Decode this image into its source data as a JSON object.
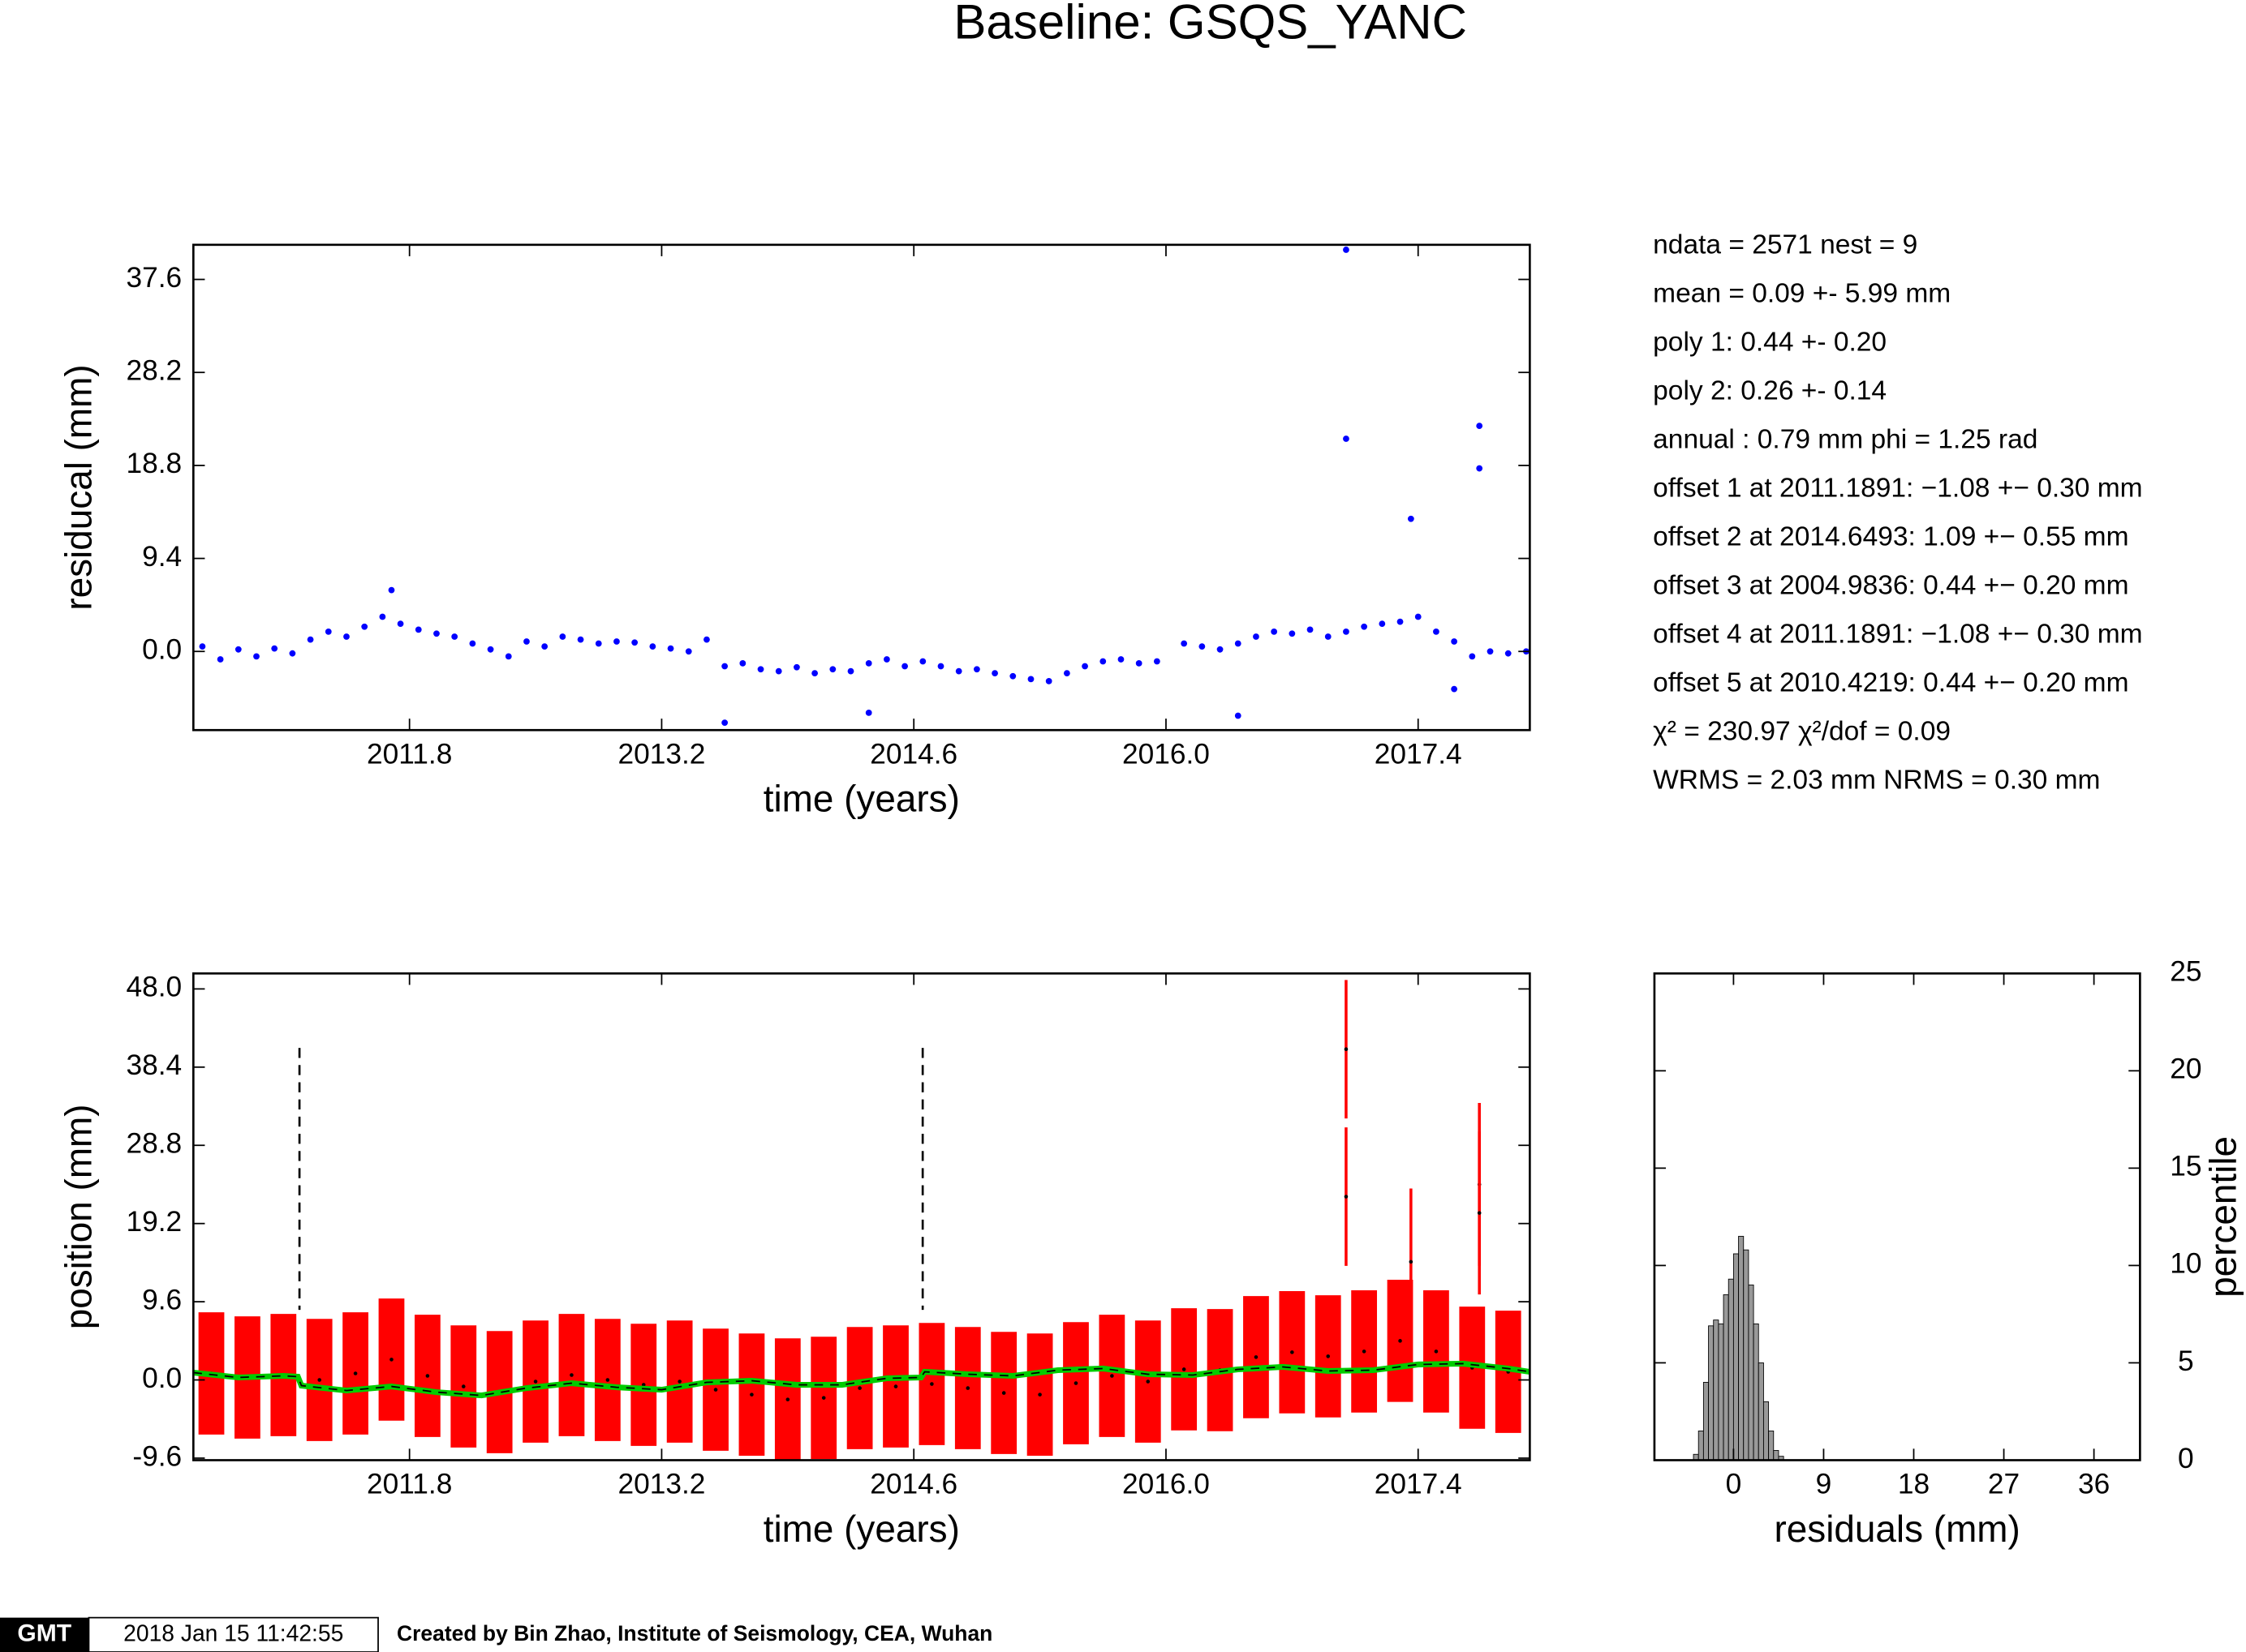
{
  "title": "Baseline: GSQS_YANC",
  "stats": [
    "ndata = 2571  nest = 9",
    "mean = 0.09 +- 5.99 mm",
    "poly 1: 0.44 +- 0.20",
    "poly 2: 0.26 +- 0.14",
    "annual : 0.79 mm  phi = 1.25 rad",
    "offset 1 at 2011.1891: −1.08 +− 0.30 mm",
    "offset 2 at 2014.6493: 1.09 +− 0.55 mm",
    "offset 3 at 2004.9836: 0.44 +− 0.20 mm",
    "offset 4 at 2011.1891: −1.08 +− 0.30 mm",
    "offset 5 at 2010.4219: 0.44 +− 0.20 mm",
    "χ² = 230.97  χ²/dof = 0.09",
    "WRMS = 2.03 mm  NRMS = 0.30 mm"
  ],
  "footer": {
    "logo": "GMT",
    "timestamp": "2018 Jan 15 11:42:55",
    "credit": "Created by Bin Zhao, Institute of Seismology, CEA, Wuhan"
  },
  "chart_data": [
    {
      "type": "scatter",
      "x_label": "time (years)",
      "y_label": "residucal (mm)",
      "color": "#0000ff",
      "xlim": [
        2010.6,
        2018.02
      ],
      "ylim": [
        -7.95,
        41.1
      ],
      "xticks": [
        2011.8,
        2013.2,
        2014.6,
        {
          "value": 2016,
          "label": "2016.0"
        },
        2017.4
      ],
      "yticks": [
        {
          "value": 0,
          "label": "0.0"
        },
        9.4,
        18.8,
        28.2,
        37.6
      ],
      "y_axis_side": "left",
      "x": [
        2010.65,
        2010.75,
        2010.85,
        2010.95,
        2011.05,
        2011.15,
        2011.25,
        2011.35,
        2011.45,
        2011.55,
        2011.65,
        2011.75,
        2011.85,
        2011.95,
        2012.05,
        2012.15,
        2012.25,
        2012.35,
        2012.45,
        2012.55,
        2012.65,
        2012.75,
        2012.85,
        2012.95,
        2013.05,
        2013.15,
        2013.25,
        2013.35,
        2013.45,
        2013.55,
        2013.65,
        2013.75,
        2013.85,
        2013.95,
        2014.05,
        2014.15,
        2014.25,
        2014.35,
        2014.45,
        2014.55,
        2014.65,
        2014.75,
        2014.85,
        2014.95,
        2015.05,
        2015.15,
        2015.25,
        2015.35,
        2015.45,
        2015.55,
        2015.65,
        2015.75,
        2015.85,
        2015.95,
        2016.1,
        2016.2,
        2016.3,
        2016.4,
        2016.5,
        2016.6,
        2016.7,
        2016.8,
        2016.9,
        2017.0,
        2017.1,
        2017.2,
        2017.3,
        2017.4,
        2017.5,
        2017.6,
        2017.7,
        2017.8,
        2017.9,
        2018.0,
        2017.0,
        2017.0,
        2017.36,
        2017.74,
        2017.74,
        2013.55,
        2014.35,
        2016.4,
        2011.7,
        2017.6
      ],
      "values": [
        0.5,
        -0.8,
        0.2,
        -0.5,
        0.3,
        -0.2,
        1.2,
        2.0,
        1.5,
        2.5,
        3.5,
        2.8,
        2.2,
        1.8,
        1.5,
        0.8,
        0.2,
        -0.5,
        1.0,
        0.5,
        1.5,
        1.2,
        0.8,
        1.0,
        0.9,
        0.5,
        0.3,
        0.0,
        1.2,
        -1.5,
        -1.2,
        -1.8,
        -2.0,
        -1.6,
        -2.2,
        -1.8,
        -2.0,
        -1.2,
        -0.8,
        -1.5,
        -1.0,
        -1.5,
        -2.0,
        -1.8,
        -2.2,
        -2.5,
        -2.8,
        -3.0,
        -2.2,
        -1.5,
        -1.0,
        -0.8,
        -1.2,
        -1.0,
        0.8,
        0.5,
        0.2,
        0.8,
        1.5,
        2.0,
        1.8,
        2.2,
        1.5,
        2.0,
        2.5,
        2.8,
        3.0,
        3.5,
        2.0,
        1.0,
        -0.5,
        0.0,
        -0.2,
        0.0,
        40.6,
        21.5,
        13.4,
        22.8,
        18.5,
        -7.2,
        -6.2,
        -6.5,
        6.2,
        -3.8
      ]
    },
    {
      "type": "errorbar",
      "x_label": "time (years)",
      "y_label": "position (mm)",
      "color": "#ff0000",
      "model_color": "#00cc00",
      "xlim": [
        2010.6,
        2018.02
      ],
      "ylim": [
        -9.85,
        49.9
      ],
      "xticks": [
        2011.8,
        2013.2,
        2014.6,
        {
          "value": 2016,
          "label": "2016.0"
        },
        2017.4
      ],
      "yticks": [
        -9.6,
        {
          "value": 0,
          "label": "0.0"
        },
        9.6,
        19.2,
        28.8,
        38.4,
        {
          "value": 48,
          "label": "48.0"
        }
      ],
      "y_axis_side": "left",
      "x": [
        2010.7,
        2010.9,
        2011.1,
        2011.3,
        2011.5,
        2011.7,
        2011.9,
        2012.1,
        2012.3,
        2012.5,
        2012.7,
        2012.9,
        2013.1,
        2013.3,
        2013.5,
        2013.7,
        2013.9,
        2014.1,
        2014.3,
        2014.5,
        2014.7,
        2014.9,
        2015.1,
        2015.3,
        2015.5,
        2015.7,
        2015.9,
        2016.1,
        2016.3,
        2016.5,
        2016.7,
        2016.9,
        2017.1,
        2017.3,
        2017.5,
        2017.7,
        2017.9
      ],
      "values": [
        0.8,
        0.3,
        0.6,
        0.0,
        0.8,
        2.5,
        0.5,
        -0.8,
        -1.5,
        -0.2,
        0.6,
        0.0,
        -0.6,
        -0.2,
        -1.2,
        -1.8,
        -2.4,
        -2.2,
        -1.0,
        -0.8,
        -0.5,
        -1.0,
        -1.6,
        -1.8,
        -0.4,
        0.5,
        -0.2,
        1.3,
        1.2,
        2.8,
        3.4,
        2.9,
        3.5,
        4.8,
        3.5,
        1.5,
        1.0
      ],
      "errors": [
        7.5,
        7.5,
        7.5,
        7.5,
        7.5,
        7.5,
        7.5,
        7.5,
        7.5,
        7.5,
        7.5,
        7.5,
        7.5,
        7.5,
        7.5,
        7.5,
        7.5,
        7.5,
        7.5,
        7.5,
        7.5,
        7.5,
        7.5,
        7.5,
        7.5,
        7.5,
        7.5,
        7.5,
        7.5,
        7.5,
        7.5,
        7.5,
        7.5,
        7.5,
        7.5,
        7.5,
        7.5
      ],
      "outlier_x": [
        2017.0,
        2017.0,
        2017.36,
        2017.74,
        2017.74
      ],
      "outlier_values": [
        40.6,
        22.5,
        14.5,
        24.0,
        20.5
      ],
      "outlier_errors": [
        8.5,
        8.5,
        9,
        10,
        10
      ],
      "offsets": [
        2011.1891,
        2014.6493
      ],
      "model_x": [
        2010.6,
        2010.85,
        2011.1,
        2011.18,
        2011.2,
        2011.45,
        2011.7,
        2011.95,
        2012.2,
        2012.45,
        2012.7,
        2012.95,
        2013.2,
        2013.45,
        2013.7,
        2013.95,
        2014.2,
        2014.45,
        2014.64,
        2014.66,
        2014.9,
        2015.15,
        2015.4,
        2015.65,
        2015.9,
        2016.15,
        2016.4,
        2016.65,
        2016.9,
        2017.15,
        2017.4,
        2017.65,
        2017.9,
        2018.02
      ],
      "model_values": [
        0.9,
        0.3,
        0.5,
        0.4,
        -0.7,
        -1.3,
        -0.8,
        -1.5,
        -1.9,
        -1.0,
        -0.4,
        -0.9,
        -1.2,
        -0.3,
        -0.1,
        -0.6,
        -0.6,
        0.2,
        0.3,
        1.0,
        0.7,
        0.5,
        1.2,
        1.4,
        0.7,
        0.6,
        1.3,
        1.6,
        1.1,
        1.2,
        1.9,
        2.0,
        1.4,
        1.0
      ]
    },
    {
      "type": "histogram",
      "x_label": "residuals (mm)",
      "y_label": "percentile",
      "color": "#999999",
      "xlim": [
        -7.9,
        40.6
      ],
      "ylim": [
        0,
        25
      ],
      "xticks": [
        0,
        9,
        18,
        27,
        36
      ],
      "yticks": [
        0,
        5,
        10,
        15,
        20,
        25
      ],
      "y_axis_side": "right",
      "bins": [
        -4,
        -3.5,
        -3,
        -2.5,
        -2,
        -1.5,
        -1,
        -0.5,
        0,
        0.5,
        1,
        1.5,
        2,
        2.5,
        3,
        3.5,
        4,
        4.5,
        5
      ],
      "values": [
        0.3,
        1.5,
        4,
        6.9,
        7.2,
        7,
        8.5,
        9.3,
        10.6,
        11.5,
        10.8,
        9,
        7,
        5,
        3,
        1.5,
        0.5,
        0.2
      ]
    }
  ]
}
